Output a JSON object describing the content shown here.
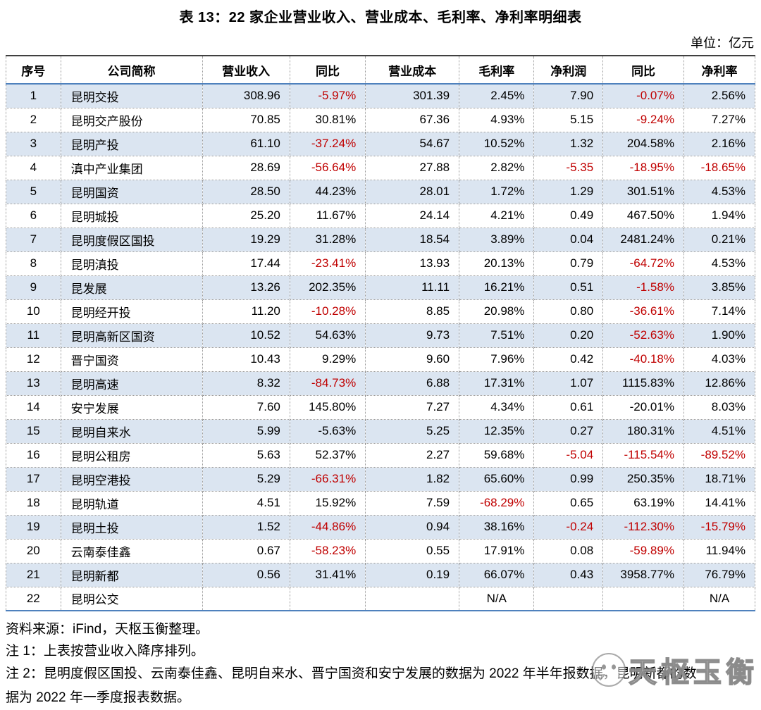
{
  "title": "表 13：22 家企业营业收入、营业成本、毛利率、净利率明细表",
  "unit_label": "单位：亿元",
  "table": {
    "headers": [
      "序号",
      "公司简称",
      "营业收入",
      "同比",
      "营业成本",
      "毛利率",
      "净利润",
      "同比",
      "净利率"
    ],
    "rows": [
      {
        "cells": [
          "1",
          "昆明交投",
          "308.96",
          "-5.97%",
          "301.39",
          "2.45%",
          "7.90",
          "-0.07%",
          "2.56%"
        ],
        "red": [
          3,
          7
        ]
      },
      {
        "cells": [
          "2",
          "昆明交产股份",
          "70.85",
          "30.81%",
          "67.36",
          "4.93%",
          "5.15",
          "-9.24%",
          "7.27%"
        ],
        "red": [
          7
        ]
      },
      {
        "cells": [
          "3",
          "昆明产投",
          "61.10",
          "-37.24%",
          "54.67",
          "10.52%",
          "1.32",
          "204.58%",
          "2.16%"
        ],
        "red": [
          3
        ]
      },
      {
        "cells": [
          "4",
          "滇中产业集团",
          "28.69",
          "-56.64%",
          "27.88",
          "2.82%",
          "-5.35",
          "-18.95%",
          "-18.65%"
        ],
        "red": [
          3,
          6,
          7,
          8
        ]
      },
      {
        "cells": [
          "5",
          "昆明国资",
          "28.50",
          "44.23%",
          "28.01",
          "1.72%",
          "1.29",
          "301.51%",
          "4.53%"
        ],
        "red": []
      },
      {
        "cells": [
          "6",
          "昆明城投",
          "25.20",
          "11.67%",
          "24.14",
          "4.21%",
          "0.49",
          "467.50%",
          "1.94%"
        ],
        "red": []
      },
      {
        "cells": [
          "7",
          "昆明度假区国投",
          "19.29",
          "31.28%",
          "18.54",
          "3.89%",
          "0.04",
          "2481.24%",
          "0.21%"
        ],
        "red": []
      },
      {
        "cells": [
          "8",
          "昆明滇投",
          "17.44",
          "-23.41%",
          "13.93",
          "20.13%",
          "0.79",
          "-64.72%",
          "4.53%"
        ],
        "red": [
          3,
          7
        ]
      },
      {
        "cells": [
          "9",
          "昆发展",
          "13.26",
          "202.35%",
          "11.11",
          "16.21%",
          "0.51",
          "-1.58%",
          "3.85%"
        ],
        "red": [
          7
        ]
      },
      {
        "cells": [
          "10",
          "昆明经开投",
          "11.20",
          "-10.28%",
          "8.85",
          "20.98%",
          "0.80",
          "-36.61%",
          "7.14%"
        ],
        "red": [
          3,
          7
        ]
      },
      {
        "cells": [
          "11",
          "昆明高新区国资",
          "10.52",
          "54.63%",
          "9.73",
          "7.51%",
          "0.20",
          "-52.63%",
          "1.90%"
        ],
        "red": [
          7
        ]
      },
      {
        "cells": [
          "12",
          "晋宁国资",
          "10.43",
          "9.29%",
          "9.60",
          "7.96%",
          "0.42",
          "-40.18%",
          "4.03%"
        ],
        "red": [
          7
        ]
      },
      {
        "cells": [
          "13",
          "昆明高速",
          "8.32",
          "-84.73%",
          "6.88",
          "17.31%",
          "1.07",
          "1115.83%",
          "12.86%"
        ],
        "red": [
          3
        ]
      },
      {
        "cells": [
          "14",
          "安宁发展",
          "7.60",
          "145.80%",
          "7.27",
          "4.34%",
          "0.61",
          "-20.01%",
          "8.03%"
        ],
        "red": []
      },
      {
        "cells": [
          "15",
          "昆明自来水",
          "5.99",
          "-5.63%",
          "5.25",
          "12.35%",
          "0.27",
          "180.31%",
          "4.51%"
        ],
        "red": []
      },
      {
        "cells": [
          "16",
          "昆明公租房",
          "5.63",
          "52.37%",
          "2.27",
          "59.68%",
          "-5.04",
          "-115.54%",
          "-89.52%"
        ],
        "red": [
          6,
          7,
          8
        ]
      },
      {
        "cells": [
          "17",
          "昆明空港投",
          "5.29",
          "-66.31%",
          "1.82",
          "65.60%",
          "0.99",
          "250.35%",
          "18.71%"
        ],
        "red": [
          3
        ]
      },
      {
        "cells": [
          "18",
          "昆明轨道",
          "4.51",
          "15.92%",
          "7.59",
          "-68.29%",
          "0.65",
          "63.19%",
          "14.41%"
        ],
        "red": [
          5
        ]
      },
      {
        "cells": [
          "19",
          "昆明土投",
          "1.52",
          "-44.86%",
          "0.94",
          "38.16%",
          "-0.24",
          "-112.30%",
          "-15.79%"
        ],
        "red": [
          3,
          6,
          7,
          8
        ]
      },
      {
        "cells": [
          "20",
          "云南泰佳鑫",
          "0.67",
          "-58.23%",
          "0.55",
          "17.91%",
          "0.08",
          "-59.89%",
          "11.94%"
        ],
        "red": [
          3,
          7
        ]
      },
      {
        "cells": [
          "21",
          "昆明新都",
          "0.56",
          "31.41%",
          "0.19",
          "66.07%",
          "0.43",
          "3958.77%",
          "76.79%"
        ],
        "red": []
      },
      {
        "cells": [
          "22",
          "昆明公交",
          "",
          "",
          "",
          "N/A",
          "",
          "",
          "N/A"
        ],
        "red": []
      }
    ]
  },
  "footer": {
    "source": "资料来源：iFind，天枢玉衡整理。",
    "note1": "注 1：上表按营业收入降序排列。",
    "note2": "注 2：昆明度假区国投、云南泰佳鑫、昆明自来水、晋宁国资和安宁发展的数据为 2022 年半年报数据，昆明新都的数据为 2022 年一季度报表数据。"
  },
  "watermark": {
    "text": "天枢玉衡"
  },
  "colors": {
    "negative_red": "#c00000",
    "row_alt_blue": "#dbe5f1",
    "border_blue": "#4f81bd",
    "border_dark": "#404040"
  }
}
